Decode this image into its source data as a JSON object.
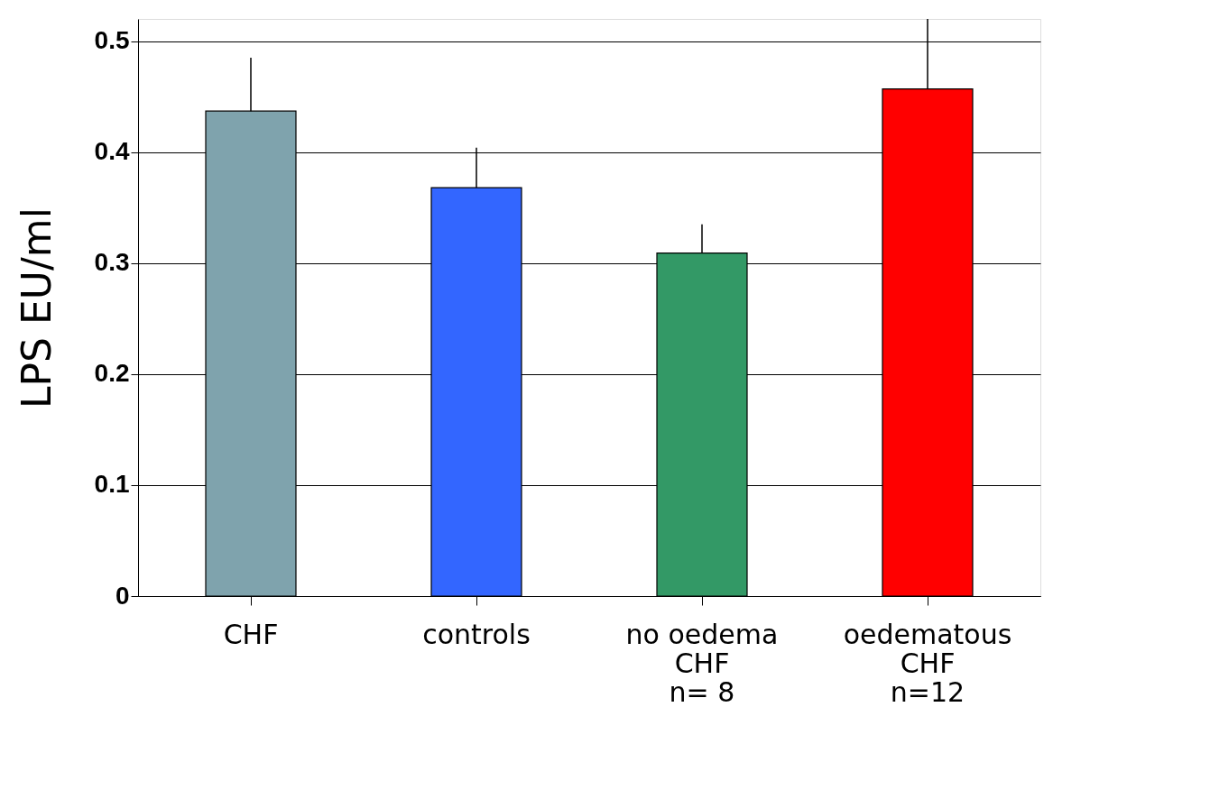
{
  "chart_data": {
    "type": "bar",
    "ylabel": "LPS EU/ml",
    "categories": [
      "CHF",
      "controls",
      "no oedema\nCHF\nn= 8",
      "oedematous\nCHF\nn=12"
    ],
    "values": [
      0.437,
      0.368,
      0.309,
      0.457
    ],
    "errors": [
      0.048,
      0.036,
      0.026,
      0.063
    ],
    "colors": [
      "#7fa3ad",
      "#3366ff",
      "#339966",
      "#ff0000"
    ],
    "ylim": [
      0,
      0.52
    ],
    "yticks": [
      0,
      0.1,
      0.2,
      0.3,
      0.4,
      0.5
    ],
    "grid": "y"
  }
}
